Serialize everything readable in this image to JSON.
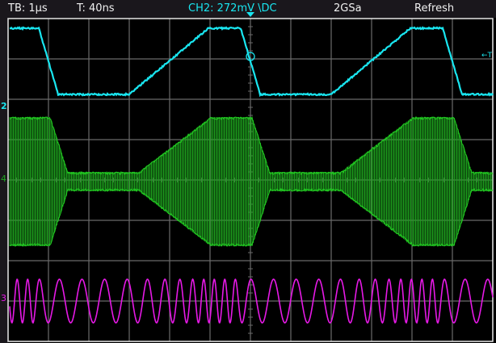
{
  "header": {
    "timebase": "TB: 1µs",
    "trigger_delay": "T: 40ns",
    "trigger_source": "CH2: 272mV \\DC",
    "sample_rate": "2GSa",
    "mode": "Refresh"
  },
  "markers": {
    "ch2": "2",
    "ch4": "4",
    "ch3": "3",
    "trigger": "T"
  },
  "colors": {
    "ch2": "#19e6f0",
    "ch4": "#1fa61f",
    "ch3": "#e619e6",
    "grid": "#6a6a6a",
    "background": "#000000"
  }
}
